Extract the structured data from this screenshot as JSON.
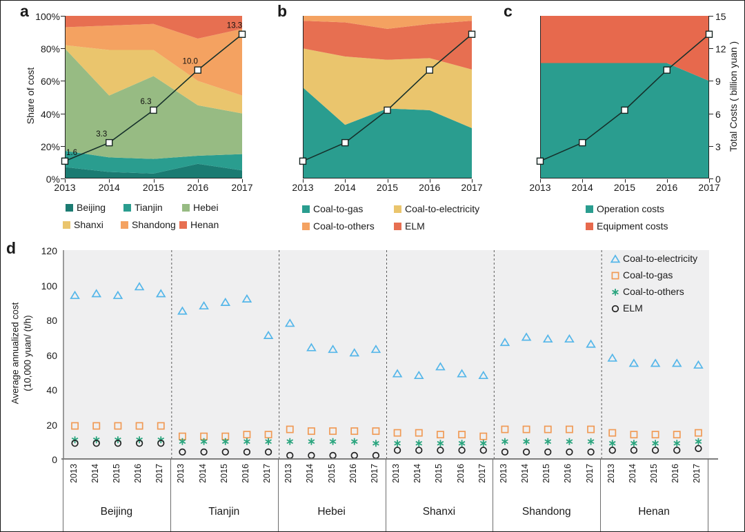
{
  "panel_letters": {
    "a": "a",
    "b": "b",
    "c": "c",
    "d": "d"
  },
  "colors": {
    "beijing": "#1b7b72",
    "tianjin": "#2a9d8f",
    "hebei": "#97bb83",
    "shanxi": "#eac56d",
    "shandong": "#f4a261",
    "henan": "#e76f51",
    "coal_to_gas": "#2a9d8f",
    "coal_to_electricity": "#eac56d",
    "coal_to_others": "#f4a261",
    "elm": "#e76f51",
    "operation_costs": "#2a9d8f",
    "equipment_costs": "#e7694d",
    "total_line": "#16302b",
    "marker_fill": "#ffffff",
    "scatter_triangle": "#54b6e9",
    "scatter_square": "#f09a55",
    "scatter_asterisk": "#2aa57e",
    "scatter_circle": "#222222",
    "plot_bg": "#efeff0",
    "axis_gray": "#8a8a8a"
  },
  "chart_data": [
    {
      "id": "a",
      "type": "area",
      "stacked": true,
      "percent": true,
      "ylabel": "Share of cost",
      "x": [
        "2013",
        "2014",
        "2015",
        "2016",
        "2017"
      ],
      "yticks": [
        "0%",
        "20%",
        "40%",
        "60%",
        "80%",
        "100%"
      ],
      "series": [
        {
          "name": "Beijing",
          "color_key": "beijing",
          "values": [
            7,
            4,
            3,
            9,
            5
          ]
        },
        {
          "name": "Tianjin",
          "color_key": "tianjin",
          "values": [
            10,
            9,
            9,
            5,
            10
          ]
        },
        {
          "name": "Hebei",
          "color_key": "hebei",
          "values": [
            63,
            38,
            51,
            31,
            25
          ]
        },
        {
          "name": "Shanxi",
          "color_key": "shanxi",
          "values": [
            2,
            28,
            16,
            15,
            11
          ]
        },
        {
          "name": "Shandong",
          "color_key": "shandong",
          "values": [
            11,
            15,
            16,
            26,
            41
          ]
        },
        {
          "name": "Henan",
          "color_key": "henan",
          "values": [
            7,
            6,
            5,
            14,
            8
          ]
        }
      ],
      "overlay_line": {
        "name": "Total costs",
        "ymax": 15,
        "values": [
          1.6,
          3.3,
          6.3,
          10.0,
          13.3
        ],
        "labels": [
          "1.6",
          "3.3",
          "6.3",
          "10.0",
          "13.3"
        ]
      },
      "legend_rows": [
        [
          {
            "label": "Beijing",
            "color_key": "beijing"
          },
          {
            "label": "Tianjin",
            "color_key": "tianjin"
          },
          {
            "label": "Hebei",
            "color_key": "hebei"
          }
        ],
        [
          {
            "label": "Shanxi",
            "color_key": "shanxi"
          },
          {
            "label": "Shandong",
            "color_key": "shandong"
          },
          {
            "label": "Henan",
            "color_key": "henan"
          }
        ]
      ]
    },
    {
      "id": "b",
      "type": "area",
      "stacked": true,
      "percent": true,
      "x": [
        "2013",
        "2014",
        "2015",
        "2016",
        "2017"
      ],
      "series": [
        {
          "name": "Coal-to-gas",
          "color_key": "coal_to_gas",
          "values": [
            56,
            33,
            43,
            42,
            31
          ]
        },
        {
          "name": "Coal-to-electricity",
          "color_key": "coal_to_electricity",
          "values": [
            24,
            42,
            30,
            32,
            36
          ]
        },
        {
          "name": "ELM",
          "color_key": "elm",
          "values": [
            17,
            21,
            19,
            21,
            30
          ]
        },
        {
          "name": "Coal-to-others",
          "color_key": "coal_to_others",
          "values": [
            3,
            4,
            8,
            5,
            3
          ]
        }
      ],
      "overlay_line": {
        "name": "Total costs",
        "ymax": 15,
        "values": [
          1.6,
          3.3,
          6.3,
          10.0,
          13.3
        ],
        "labels": []
      },
      "legend_rows": [
        [
          {
            "label": "Coal-to-gas",
            "color_key": "coal_to_gas"
          },
          {
            "label": "Coal-to-electricity",
            "color_key": "coal_to_electricity"
          }
        ],
        [
          {
            "label": "Coal-to-others",
            "color_key": "coal_to_others"
          },
          {
            "label": "ELM",
            "color_key": "elm"
          }
        ]
      ]
    },
    {
      "id": "c",
      "type": "area",
      "stacked": true,
      "percent": true,
      "y2label": "Total Costs ( billion yuan )",
      "y2ticks": [
        "0",
        "3",
        "6",
        "9",
        "12",
        "15"
      ],
      "x": [
        "2013",
        "2014",
        "2015",
        "2016",
        "2017"
      ],
      "series": [
        {
          "name": "Operation costs",
          "color_key": "operation_costs",
          "values": [
            71,
            71,
            71,
            71,
            60
          ]
        },
        {
          "name": "Equipment costs",
          "color_key": "equipment_costs",
          "values": [
            29,
            29,
            29,
            29,
            40
          ]
        }
      ],
      "overlay_line": {
        "name": "Total costs",
        "ymax": 15,
        "values": [
          1.6,
          3.3,
          6.3,
          10.0,
          13.3
        ],
        "labels": []
      },
      "legend_rows": [
        [
          {
            "label": "Operation costs",
            "color_key": "operation_costs"
          }
        ],
        [
          {
            "label": "Equipment costs",
            "color_key": "equipment_costs"
          }
        ]
      ]
    },
    {
      "id": "d",
      "type": "scatter",
      "ylabel_line1": "Average annualized cost",
      "ylabel_line2": "(10,000 yuan/ (t/h)",
      "yticks": [
        "0",
        "20",
        "40",
        "60",
        "80",
        "100",
        "120"
      ],
      "ylim": [
        0,
        120
      ],
      "groups": [
        "Beijing",
        "Tianjin",
        "Hebei",
        "Shanxi",
        "Shandong",
        "Henan"
      ],
      "years": [
        "2013",
        "2014",
        "2015",
        "2016",
        "2017"
      ],
      "series": [
        {
          "name": "Coal-to-electricity",
          "marker": "triangle",
          "color_key": "scatter_triangle",
          "values": [
            [
              94,
              95,
              94,
              99,
              95
            ],
            [
              85,
              88,
              90,
              92,
              71
            ],
            [
              78,
              64,
              63,
              61,
              63
            ],
            [
              49,
              48,
              53,
              49,
              48
            ],
            [
              67,
              70,
              69,
              69,
              66
            ],
            [
              58,
              55,
              55,
              55,
              54
            ]
          ]
        },
        {
          "name": "Coal-to-gas",
          "marker": "square",
          "color_key": "scatter_square",
          "values": [
            [
              19,
              19,
              19,
              19,
              19
            ],
            [
              13,
              13,
              13,
              14,
              14
            ],
            [
              17,
              16,
              16,
              16,
              16
            ],
            [
              15,
              15,
              14,
              14,
              13
            ],
            [
              17,
              17,
              17,
              17,
              17
            ],
            [
              15,
              14,
              14,
              14,
              15
            ]
          ]
        },
        {
          "name": "Coal-to-others",
          "marker": "asterisk",
          "color_key": "scatter_asterisk",
          "values": [
            [
              11,
              11,
              11,
              11,
              11
            ],
            [
              10,
              10,
              10,
              10,
              10
            ],
            [
              10,
              10,
              10,
              10,
              9
            ],
            [
              9,
              9,
              9,
              9,
              9
            ],
            [
              10,
              10,
              10,
              10,
              10
            ],
            [
              9,
              9,
              9,
              9,
              10
            ]
          ]
        },
        {
          "name": "ELM",
          "marker": "circle",
          "color_key": "scatter_circle",
          "values": [
            [
              9,
              9,
              9,
              9,
              9
            ],
            [
              4,
              4,
              4,
              4,
              4
            ],
            [
              2,
              2,
              2,
              2,
              2
            ],
            [
              5,
              5,
              5,
              5,
              5
            ],
            [
              4,
              4,
              4,
              4,
              4
            ],
            [
              5,
              5,
              5,
              5,
              6
            ]
          ]
        }
      ],
      "legend": [
        {
          "label": "Coal-to-electricity",
          "marker": "triangle",
          "color_key": "scatter_triangle"
        },
        {
          "label": "Coal-to-gas",
          "marker": "square",
          "color_key": "scatter_square"
        },
        {
          "label": "Coal-to-others",
          "marker": "asterisk",
          "color_key": "scatter_asterisk"
        },
        {
          "label": "ELM",
          "marker": "circle",
          "color_key": "scatter_circle"
        }
      ]
    }
  ]
}
